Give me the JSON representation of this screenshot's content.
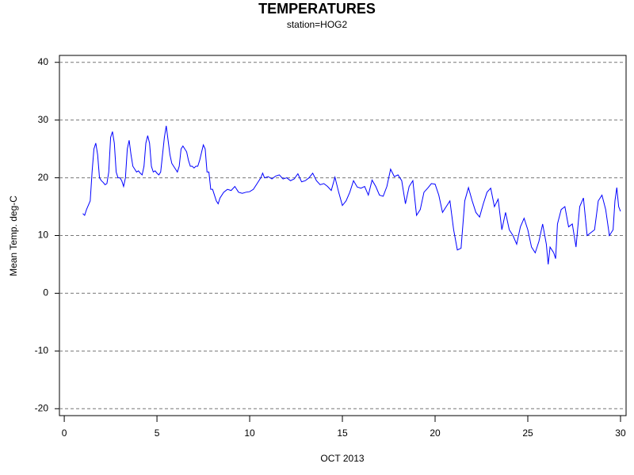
{
  "chart_data": {
    "type": "line",
    "title": "TEMPERATURES",
    "subtitle": "station=HOG2",
    "x_label": "OCT 2013",
    "y_label": "Mean Temp. deg-C",
    "xlim": [
      -0.26,
      30.3
    ],
    "xticks": [
      0,
      5,
      10,
      15,
      20,
      25,
      30
    ],
    "ylim": [
      -21.2,
      41.2
    ],
    "yticks": [
      -20,
      -10,
      0,
      10,
      20,
      30,
      40
    ],
    "grid": true,
    "series": [
      {
        "name": "Mean Temp. deg-C",
        "color": "#0000ff",
        "x": [
          1.0,
          1.1,
          1.2,
          1.4,
          1.5,
          1.6,
          1.7,
          1.8,
          1.9,
          2.0,
          2.1,
          2.2,
          2.3,
          2.4,
          2.5,
          2.6,
          2.7,
          2.8,
          2.9,
          3.0,
          3.1,
          3.2,
          3.3,
          3.4,
          3.5,
          3.6,
          3.7,
          3.8,
          3.9,
          4.0,
          4.1,
          4.2,
          4.3,
          4.4,
          4.5,
          4.6,
          4.7,
          4.8,
          4.9,
          5.0,
          5.1,
          5.2,
          5.3,
          5.4,
          5.5,
          5.6,
          5.7,
          5.8,
          5.9,
          6.0,
          6.1,
          6.2,
          6.3,
          6.4,
          6.5,
          6.6,
          6.7,
          6.8,
          6.9,
          7.0,
          7.1,
          7.2,
          7.3,
          7.5,
          7.6,
          7.7,
          7.8,
          7.9,
          8.0,
          8.1,
          8.2,
          8.3,
          8.4,
          8.6,
          8.8,
          9.0,
          9.2,
          9.4,
          9.6,
          9.8,
          10.0,
          10.2,
          10.4,
          10.6,
          10.7,
          10.8,
          11.0,
          11.2,
          11.4,
          11.6,
          11.8,
          12.0,
          12.2,
          12.4,
          12.6,
          12.8,
          13.0,
          13.2,
          13.4,
          13.6,
          13.8,
          14.0,
          14.2,
          14.4,
          14.6,
          14.8,
          15.0,
          15.2,
          15.4,
          15.6,
          15.8,
          16.0,
          16.2,
          16.4,
          16.6,
          16.8,
          17.0,
          17.2,
          17.4,
          17.6,
          17.8,
          18.0,
          18.2,
          18.4,
          18.6,
          18.8,
          19.0,
          19.2,
          19.4,
          19.6,
          19.8,
          20.0,
          20.2,
          20.4,
          20.6,
          20.8,
          21.0,
          21.2,
          21.4,
          21.6,
          21.8,
          22.0,
          22.2,
          22.4,
          22.6,
          22.8,
          23.0,
          23.2,
          23.4,
          23.6,
          23.8,
          24.0,
          24.2,
          24.4,
          24.6,
          24.8,
          25.0,
          25.2,
          25.4,
          25.6,
          25.8,
          26.0,
          26.1,
          26.2,
          26.4,
          26.5,
          26.6,
          26.8,
          27.0,
          27.2,
          27.4,
          27.6,
          27.8,
          28.0,
          28.2,
          28.4,
          28.6,
          28.8,
          29.0,
          29.2,
          29.4,
          29.6,
          29.7,
          29.8,
          29.9,
          30.0
        ],
        "values": [
          13.8,
          13.5,
          14.5,
          16,
          21,
          25,
          26,
          24,
          20,
          19.5,
          19.2,
          18.8,
          19,
          21,
          27,
          28,
          26,
          21,
          20,
          20,
          19.5,
          18.5,
          20,
          25,
          26.5,
          24,
          22,
          21.5,
          21,
          21.2,
          20.8,
          20.5,
          22,
          26,
          27.3,
          26,
          22,
          21,
          21.2,
          20.8,
          20.5,
          21,
          24,
          27,
          29,
          26.5,
          24,
          22.5,
          22,
          21.5,
          21,
          22,
          25,
          25.5,
          25,
          24.5,
          23,
          22,
          22,
          21.7,
          22,
          22,
          23,
          25.7,
          25,
          21,
          21,
          18,
          18,
          17,
          16,
          15.5,
          16.5,
          17.5,
          18,
          17.8,
          18.5,
          17.5,
          17.3,
          17.5,
          17.6,
          18,
          19,
          20,
          20.8,
          20,
          20.2,
          19.8,
          20.3,
          20.5,
          19.8,
          20,
          19.5,
          19.8,
          20.7,
          19.3,
          19.5,
          20,
          20.8,
          19.5,
          18.8,
          19,
          18.5,
          17.8,
          20.1,
          17.5,
          15.2,
          16,
          17.5,
          19.5,
          18.4,
          18.2,
          18.5,
          17,
          19.6,
          18.5,
          17,
          16.8,
          18.5,
          21.5,
          20.2,
          20.5,
          19.5,
          15.5,
          18.5,
          19.5,
          13.5,
          14.5,
          17.5,
          18.2,
          19,
          18.9,
          17,
          14,
          15,
          16,
          11,
          7.5,
          7.8,
          16,
          18.3,
          16,
          14,
          13.2,
          15.5,
          17.5,
          18.2,
          15,
          16.3,
          11,
          14,
          11,
          10,
          8.5,
          11.5,
          13,
          11,
          8,
          7,
          9,
          12,
          8.5,
          5,
          8,
          7,
          6,
          12,
          14.5,
          15,
          11.5,
          12,
          8,
          15,
          16.5,
          10,
          10.5,
          11,
          16,
          17,
          14.5,
          10,
          11,
          16,
          18.3,
          15,
          14.2
        ]
      }
    ]
  }
}
